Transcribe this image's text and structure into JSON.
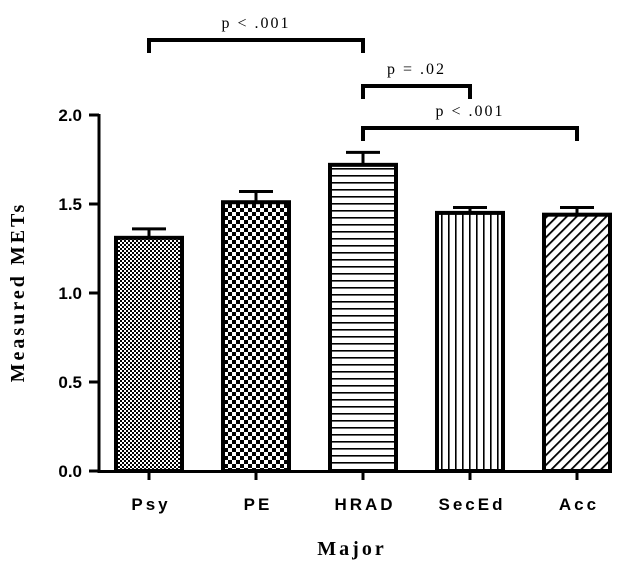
{
  "chart_data": {
    "type": "bar",
    "categories": [
      "Psy",
      "PE",
      "HRAD",
      "SecEd",
      "Acc"
    ],
    "values": [
      1.31,
      1.51,
      1.72,
      1.45,
      1.44
    ],
    "errors": [
      0.05,
      0.06,
      0.07,
      0.03,
      0.04
    ],
    "patterns": [
      "fine-dots",
      "checker",
      "horizontal-lines",
      "vertical-lines",
      "diagonal-lines"
    ],
    "xlabel": "Major",
    "ylabel": "Measured METs",
    "ylim": [
      0,
      2.0
    ],
    "yticks": [
      "0.0",
      "0.5",
      "1.0",
      "1.5",
      "2.0"
    ],
    "grid": false,
    "annotations": [
      {
        "from": "Psy",
        "to": "HRAD",
        "label": "p < .001"
      },
      {
        "from": "HRAD",
        "to": "SecEd",
        "label": "p = .02"
      },
      {
        "from": "HRAD",
        "to": "Acc",
        "label": "p < .001"
      }
    ],
    "colors": {
      "bar_stroke": "#000000",
      "pattern": "#000000",
      "background": "#ffffff"
    }
  }
}
